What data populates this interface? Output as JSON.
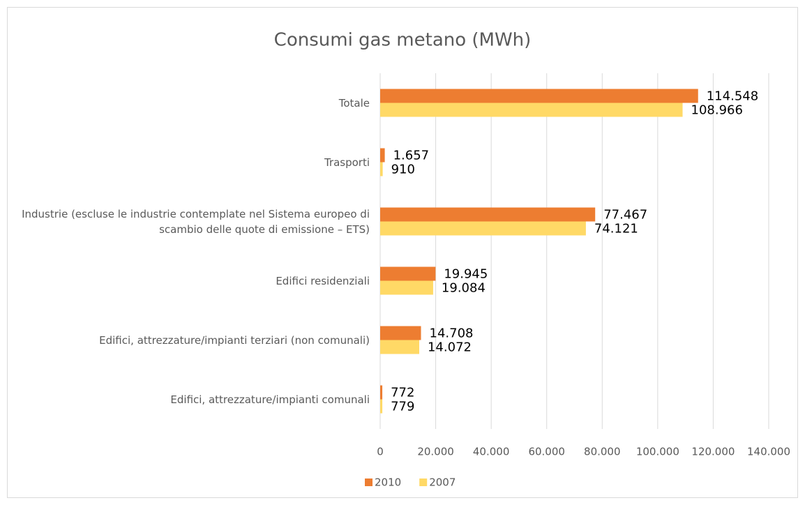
{
  "chart_data": {
    "type": "hbar",
    "title": "Consumi gas metano (MWh)",
    "categories": [
      "Totale",
      "Trasporti",
      "Industrie (escluse le industrie contemplate nel Sistema europeo di scambio delle quote di emissione – ETS)",
      "Edifici residenziali",
      "Edifici, attrezzature/impianti terziari (non comunali)",
      "Edifici, attrezzature/impianti comunali"
    ],
    "series": [
      {
        "name": "2010",
        "color": "#ed7d31",
        "values": [
          114548,
          1657,
          77467,
          19945,
          14708,
          772
        ],
        "value_labels": [
          "114.548",
          "1.657",
          "77.467",
          "19.945",
          "14.708",
          "772"
        ]
      },
      {
        "name": "2007",
        "color": "#ffd966",
        "values": [
          108966,
          910,
          74121,
          19084,
          14072,
          779
        ],
        "value_labels": [
          "108.966",
          "910",
          "74.121",
          "19.084",
          "14.072",
          "779"
        ]
      }
    ],
    "xlim": [
      0,
      140000
    ],
    "xticks": [
      0,
      {
        "value": 20000,
        "label": "20.000"
      },
      {
        "value": 40000,
        "label": "40.000"
      },
      {
        "value": 60000,
        "label": "60.000"
      },
      {
        "value": 80000,
        "label": "80.000"
      },
      {
        "value": 100000,
        "label": "100.000"
      },
      {
        "value": 120000,
        "label": "120.000"
      },
      {
        "value": 140000,
        "label": "140.000"
      }
    ],
    "grid": true,
    "legend": "bottom"
  }
}
